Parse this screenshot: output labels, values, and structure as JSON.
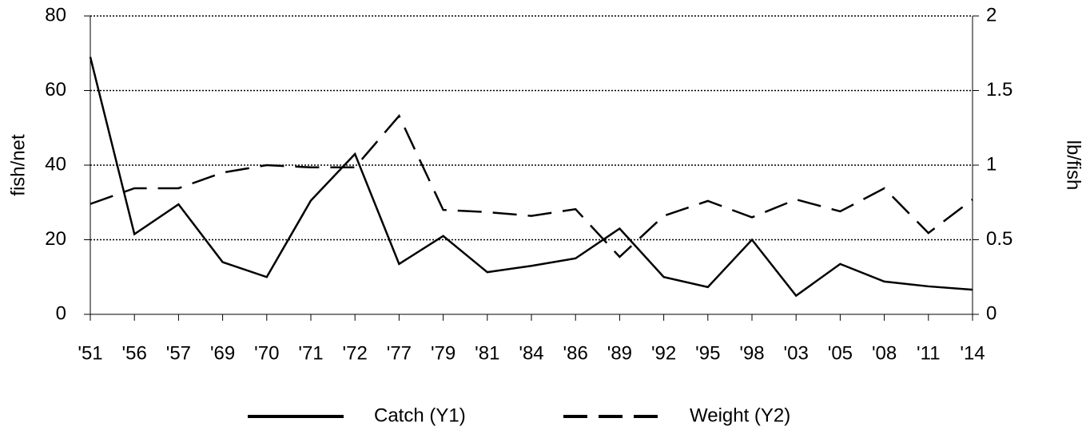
{
  "chart_data": {
    "type": "line",
    "y_label": "fish/net",
    "y2_label": "lb/fish",
    "categories": [
      "'51",
      "'56",
      "'57",
      "'69",
      "'70",
      "'71",
      "'72",
      "'77",
      "'79",
      "'81",
      "'84",
      "'86",
      "'89",
      "'92",
      "'95",
      "'98",
      "'03",
      "'05",
      "'08",
      "'11",
      "'14"
    ],
    "series": [
      {
        "name": "Catch (Y1)",
        "color": "#000000",
        "line_style": "solid",
        "axis": "y",
        "values": [
          69,
          21.5,
          29.5,
          14,
          10,
          30.5,
          43,
          13.5,
          21,
          11.3,
          13,
          15,
          23,
          10,
          7.3,
          20,
          5,
          13.5,
          8.8,
          7.5,
          6.6
        ]
      },
      {
        "name": "Weight (Y2)",
        "color": "#000000",
        "line_style": "dashed",
        "axis": "y2",
        "values": [
          0.74,
          0.845,
          0.845,
          0.95,
          1.0,
          0.985,
          0.985,
          1.33,
          0.7,
          0.685,
          0.66,
          0.705,
          0.385,
          0.66,
          0.76,
          0.65,
          0.77,
          0.69,
          0.845,
          0.545,
          0.77
        ]
      }
    ],
    "ylim": [
      0,
      80
    ],
    "yticks": [
      0,
      20,
      40,
      60,
      80
    ],
    "y2lim": [
      0,
      2
    ],
    "y2ticks": [
      0,
      0.5,
      1,
      1.5,
      2
    ],
    "grid": true,
    "legend": "bottom"
  }
}
